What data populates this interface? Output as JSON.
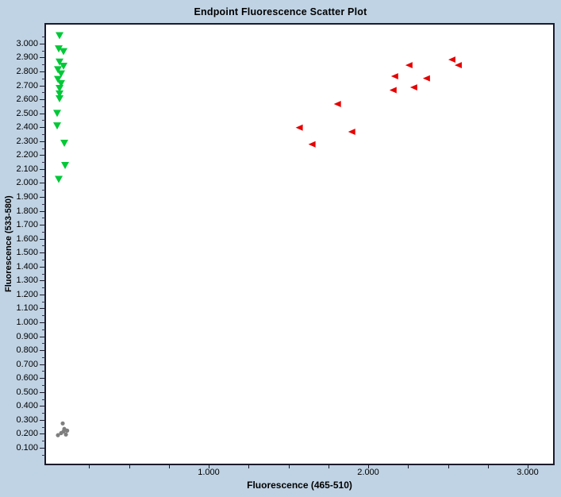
{
  "window": {
    "background_color": "#c0d3e4",
    "plot_background_color": "#ffffff",
    "plot_border_color": "#1b1b2c"
  },
  "chart_data": {
    "type": "scatter",
    "title": "Endpoint Fluorescence Scatter Plot",
    "xlabel": "Fluorescence (465-510)",
    "ylabel": "Fluorescence (533-580)",
    "xlim": [
      -0.025,
      3.164
    ],
    "ylim": [
      -0.02,
      3.142
    ],
    "grid": false,
    "legend": "none",
    "x_tick_labels": [
      "1.000",
      "2.000",
      "3.000"
    ],
    "x_minor_tick_step": 0.25,
    "x_minor_tick_range": [
      0.25,
      3.0
    ],
    "y_tick_labels": [
      "0.100",
      "0.200",
      "0.300",
      "0.400",
      "0.500",
      "0.600",
      "0.700",
      "0.800",
      "0.900",
      "1.000",
      "1.100",
      "1.200",
      "1.300",
      "1.400",
      "1.500",
      "1.600",
      "1.700",
      "1.800",
      "1.900",
      "2.000",
      "2.100",
      "2.200",
      "2.300",
      "2.400",
      "2.500",
      "2.600",
      "2.700",
      "2.800",
      "2.900",
      "3.000"
    ],
    "y_minor_tick_step": 0.05,
    "y_minor_tick_range": [
      0.05,
      3.1
    ],
    "series": [
      {
        "name": "green-triangle-down",
        "marker": "triangle-down",
        "color": "#00c837",
        "points": [
          [
            0.06,
            3.065
          ],
          [
            0.055,
            2.97
          ],
          [
            0.085,
            2.95
          ],
          [
            0.06,
            2.875
          ],
          [
            0.085,
            2.845
          ],
          [
            0.05,
            2.82
          ],
          [
            0.07,
            2.79
          ],
          [
            0.05,
            2.75
          ],
          [
            0.07,
            2.72
          ],
          [
            0.06,
            2.685
          ],
          [
            0.06,
            2.645
          ],
          [
            0.06,
            2.61
          ],
          [
            0.045,
            2.505
          ],
          [
            0.045,
            2.415
          ],
          [
            0.09,
            2.29
          ],
          [
            0.095,
            2.13
          ],
          [
            0.055,
            2.03
          ]
        ]
      },
      {
        "name": "red-triangle-left",
        "marker": "triangle-left",
        "color": "#e60000",
        "points": [
          [
            2.53,
            2.89
          ],
          [
            2.57,
            2.85
          ],
          [
            2.26,
            2.85
          ],
          [
            2.17,
            2.77
          ],
          [
            2.37,
            2.755
          ],
          [
            2.29,
            2.69
          ],
          [
            2.16,
            2.67
          ],
          [
            1.81,
            2.57
          ],
          [
            1.57,
            2.4
          ],
          [
            1.9,
            2.37
          ],
          [
            1.65,
            2.28
          ]
        ]
      },
      {
        "name": "gray-dot",
        "marker": "circle",
        "color": "#7f7f7f",
        "points": [
          [
            0.08,
            0.27
          ],
          [
            0.09,
            0.23
          ],
          [
            0.108,
            0.218
          ],
          [
            0.085,
            0.212
          ],
          [
            0.07,
            0.2
          ],
          [
            0.1,
            0.19
          ],
          [
            0.05,
            0.185
          ]
        ]
      }
    ]
  }
}
